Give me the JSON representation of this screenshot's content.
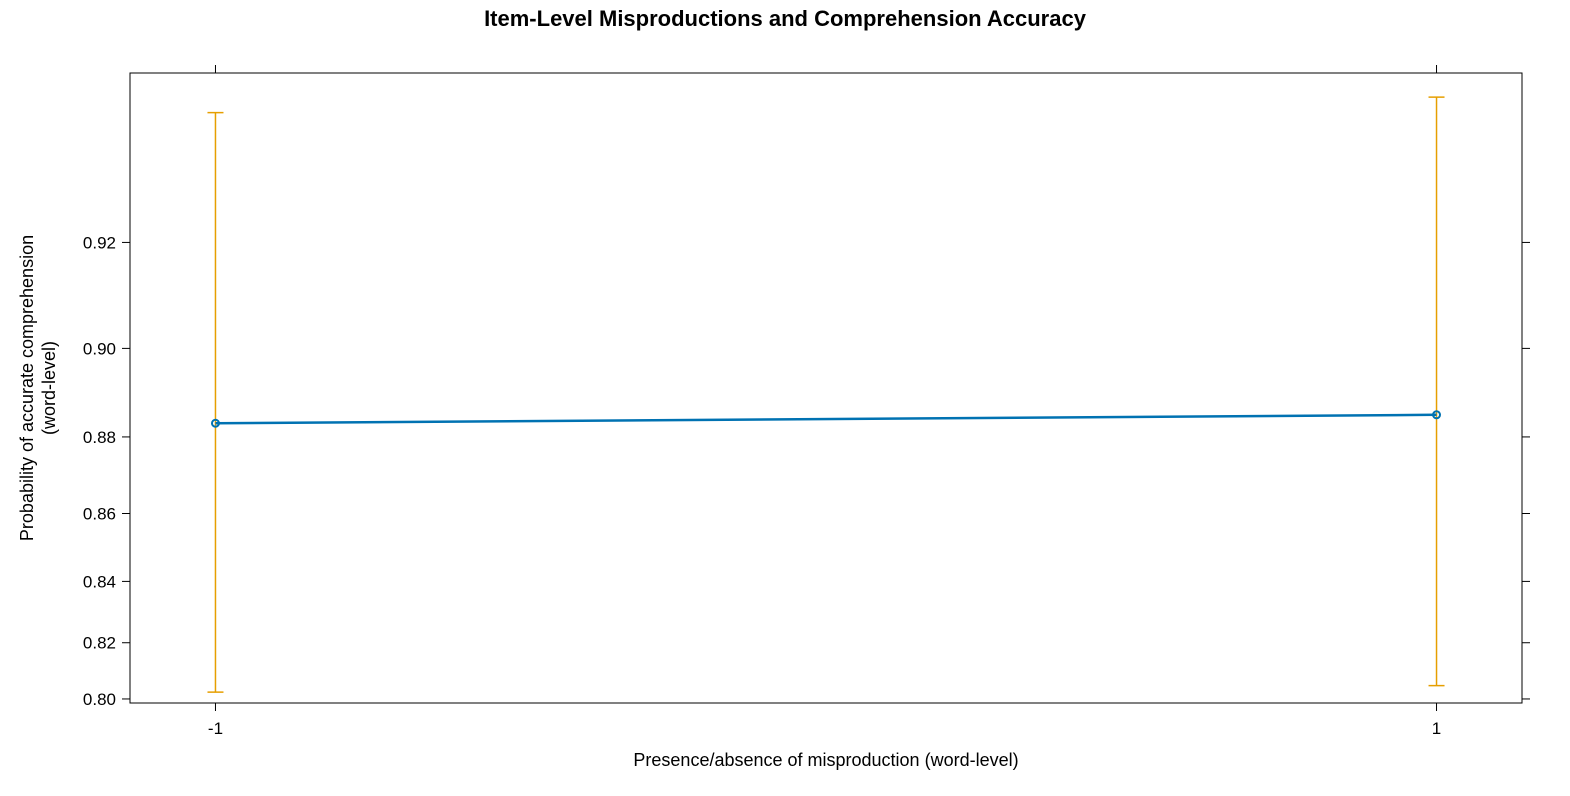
{
  "chart_data": {
    "type": "line",
    "title": "Item-Level Misproductions and Comprehension Accuracy",
    "xlabel": "Presence/absence of misproduction (word-level)",
    "ylabel_lines": [
      "Probability of accurate comprehension",
      "(word-level)"
    ],
    "x": [
      -1,
      1
    ],
    "x_tick_labels": [
      "-1",
      "1"
    ],
    "y_ticks": [
      0.8,
      0.82,
      0.84,
      0.86,
      0.88,
      0.9,
      0.92
    ],
    "y_tick_labels": [
      "0.80",
      "0.82",
      "0.84",
      "0.86",
      "0.88",
      "0.90",
      "0.92"
    ],
    "y_scale": "logit",
    "ylim": [
      0.7985,
      0.9445
    ],
    "xlim": [
      -1.14,
      1.14
    ],
    "grid": false,
    "series": [
      {
        "values": [
          0.8833,
          0.8853
        ],
        "lower": [
          0.8025,
          0.8049
        ],
        "upper": [
          0.9395,
          0.9415
        ]
      }
    ],
    "colors": {
      "line": "#0072B2",
      "error_bars": "#E69F00",
      "frame": "#000000"
    }
  }
}
